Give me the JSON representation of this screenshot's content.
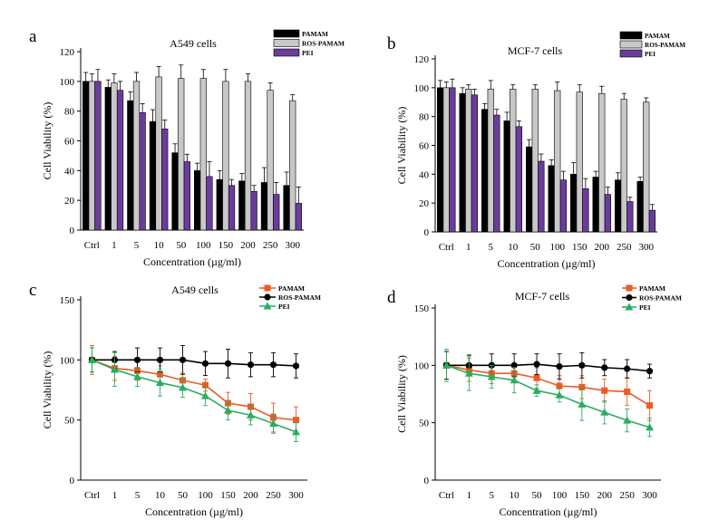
{
  "panels": [
    {
      "letter": "a",
      "chart_data": {
        "type": "bar",
        "title": "A549 cells",
        "xlabel": "Concentration (µg/ml)",
        "ylabel": "Cell Viability (%)",
        "ylim": [
          0,
          120
        ],
        "yticks": [
          0,
          20,
          40,
          60,
          80,
          100,
          120
        ],
        "categories": [
          "Ctrl",
          "1",
          "5",
          "10",
          "50",
          "100",
          "150",
          "200",
          "250",
          "300"
        ],
        "legend_position": "top-right",
        "series": [
          {
            "name": "PAMAM",
            "color": "#000000",
            "values": [
              100,
              96,
              87,
              73,
              52,
              40,
              34,
              33,
              32,
              30
            ],
            "errors": [
              6,
              5,
              6,
              8,
              6,
              5,
              6,
              5,
              10,
              9
            ]
          },
          {
            "name": "ROS-PAMAM",
            "color": "#c8c8c8",
            "values": [
              100,
              99,
              100,
              103,
              102,
              102,
              100,
              100,
              94,
              87
            ],
            "errors": [
              5,
              6,
              6,
              7,
              9,
              6,
              8,
              5,
              5,
              4
            ]
          },
          {
            "name": "PEI",
            "color": "#6a3d9a",
            "values": [
              100,
              94,
              79,
              68,
              46,
              36,
              30,
              26,
              24,
              18
            ],
            "errors": [
              8,
              6,
              6,
              6,
              5,
              10,
              4,
              4,
              8,
              11
            ]
          }
        ]
      }
    },
    {
      "letter": "b",
      "chart_data": {
        "type": "bar",
        "title": "MCF-7 cells",
        "xlabel": "Concentration (µg/ml)",
        "ylabel": "Cell Viability (%)",
        "ylim": [
          0,
          120
        ],
        "yticks": [
          0,
          20,
          40,
          60,
          80,
          100,
          120
        ],
        "categories": [
          "Ctrl",
          "1",
          "5",
          "10",
          "50",
          "100",
          "150",
          "200",
          "250",
          "300"
        ],
        "legend_position": "top-right",
        "series": [
          {
            "name": "PAMAM",
            "color": "#000000",
            "values": [
              100,
              96,
              85,
              77,
              59,
              46,
              40,
              38,
              36,
              35
            ],
            "errors": [
              5,
              4,
              4,
              6,
              5,
              4,
              8,
              4,
              5,
              3
            ]
          },
          {
            "name": "ROS-PAMAM",
            "color": "#c8c8c8",
            "values": [
              100,
              99,
              99,
              99,
              99,
              98,
              97,
              96,
              92,
              90
            ],
            "errors": [
              4,
              3,
              6,
              3,
              3,
              6,
              5,
              5,
              4,
              3
            ]
          },
          {
            "name": "PEI",
            "color": "#6a3d9a",
            "values": [
              100,
              95,
              81,
              73,
              49,
              36,
              30,
              26,
              21,
              15
            ],
            "errors": [
              6,
              4,
              4,
              4,
              5,
              6,
              7,
              5,
              3,
              4
            ]
          }
        ]
      }
    },
    {
      "letter": "c",
      "chart_data": {
        "type": "line",
        "title": "A549 cells",
        "xlabel": "Concentration (µg/ml)",
        "ylabel": "Cell Viability (%)",
        "ylim": [
          0,
          150
        ],
        "yticks": [
          0,
          50,
          100,
          150
        ],
        "categories": [
          "Ctrl",
          "1",
          "5",
          "10",
          "50",
          "100",
          "150",
          "200",
          "250",
          "300"
        ],
        "legend_position": "top-right",
        "series": [
          {
            "name": "PAMAM",
            "color": "#ee5a24",
            "marker": "square",
            "values": [
              100,
              93,
              91,
              88,
              83,
              79,
              64,
              61,
              52,
              50
            ],
            "errors": [
              12,
              10,
              8,
              7,
              6,
              5,
              9,
              11,
              12,
              11
            ]
          },
          {
            "name": "ROS-PAMAM",
            "color": "#000000",
            "marker": "circle",
            "values": [
              100,
              100,
              100,
              100,
              100,
              97,
              97,
              96,
              96,
              95
            ],
            "errors": [
              10,
              7,
              10,
              10,
              12,
              10,
              12,
              10,
              10,
              10
            ]
          },
          {
            "name": "PEI",
            "color": "#27ae60",
            "marker": "triangle",
            "values": [
              100,
              92,
              86,
              81,
              77,
              70,
              58,
              54,
              47,
              40
            ],
            "errors": [
              10,
              14,
              8,
              11,
              8,
              8,
              8,
              8,
              8,
              8
            ]
          }
        ]
      }
    },
    {
      "letter": "d",
      "chart_data": {
        "type": "line",
        "title": "MCF-7 cells",
        "xlabel": "Concentration (µg/ml)",
        "ylabel": "Cell Viability (%)",
        "ylim": [
          0,
          150
        ],
        "yticks": [
          0,
          50,
          100,
          150
        ],
        "categories": [
          "Ctrl",
          "1",
          "5",
          "10",
          "50",
          "100",
          "150",
          "200",
          "250",
          "300"
        ],
        "legend_position": "top-right",
        "series": [
          {
            "name": "PAMAM",
            "color": "#ee5a24",
            "marker": "square",
            "values": [
              100,
              96,
              93,
              93,
              89,
              82,
              81,
              78,
              77,
              65
            ],
            "errors": [
              12,
              10,
              9,
              8,
              9,
              9,
              10,
              10,
              12,
              13
            ]
          },
          {
            "name": "ROS-PAMAM",
            "color": "#000000",
            "marker": "circle",
            "values": [
              100,
              100,
              100,
              100,
              101,
              99,
              100,
              98,
              97,
              95
            ],
            "errors": [
              12,
              9,
              10,
              10,
              9,
              11,
              11,
              7,
              8,
              6
            ]
          },
          {
            "name": "PEI",
            "color": "#27ae60",
            "marker": "triangle",
            "values": [
              100,
              93,
              90,
              87,
              78,
              74,
              66,
              59,
              52,
              46
            ],
            "errors": [
              14,
              15,
              10,
              11,
              5,
              6,
              14,
              10,
              10,
              8
            ]
          }
        ]
      }
    }
  ]
}
